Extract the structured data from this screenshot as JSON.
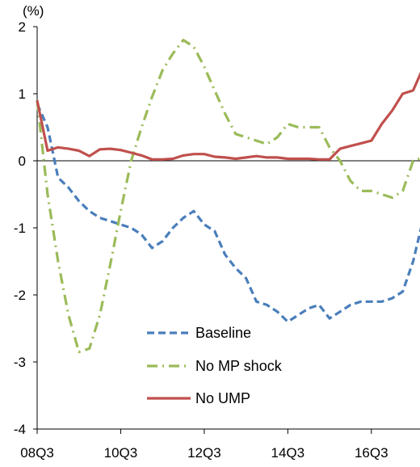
{
  "chart_data": {
    "type": "line",
    "ylabel": "(%)",
    "ylim": [
      -4,
      2
    ],
    "yticks": [
      -4,
      -3,
      -2,
      -1,
      0,
      1,
      2
    ],
    "ytick_labels": [
      "-4",
      "-3",
      "-2",
      "-1",
      "0",
      "1",
      "2"
    ],
    "xlim": [
      0,
      38
    ],
    "xticks": [
      0,
      8,
      16,
      24,
      32
    ],
    "xtick_labels": [
      "08Q3",
      "10Q3",
      "12Q3",
      "14Q3",
      "16Q3"
    ],
    "grid": false,
    "legend_position": "bottom-center",
    "series": [
      {
        "name": "Baseline",
        "style": "dashed",
        "color": "#4a7ebb",
        "x": [
          0,
          1,
          2,
          3,
          4,
          5,
          6,
          7,
          8,
          9,
          10,
          11,
          12,
          13,
          14,
          15,
          16,
          17,
          18,
          19,
          20,
          21,
          22,
          23,
          24,
          25,
          26,
          27,
          28,
          29,
          30,
          31,
          32,
          33,
          34,
          35,
          36,
          37
        ],
        "values": [
          0.85,
          0.5,
          -0.25,
          -0.4,
          -0.6,
          -0.75,
          -0.85,
          -0.9,
          -0.95,
          -1.0,
          -1.1,
          -1.3,
          -1.2,
          -1.0,
          -0.85,
          -0.75,
          -0.95,
          -1.05,
          -1.4,
          -1.6,
          -1.75,
          -2.1,
          -2.15,
          -2.25,
          -2.4,
          -2.3,
          -2.2,
          -2.15,
          -2.35,
          -2.25,
          -2.15,
          -2.1,
          -2.1,
          -2.1,
          -2.05,
          -1.95,
          -1.5,
          -0.85
        ]
      },
      {
        "name": "No MP shock",
        "style": "dash-dot",
        "color": "#9bbb59",
        "x": [
          0,
          1,
          2,
          3,
          4,
          5,
          6,
          7,
          8,
          9,
          10,
          11,
          12,
          13,
          14,
          15,
          16,
          17,
          18,
          19,
          20,
          21,
          22,
          23,
          24,
          25,
          26,
          27,
          28,
          29,
          30,
          31,
          32,
          33,
          34,
          35,
          36,
          37
        ],
        "values": [
          0.9,
          -0.5,
          -1.5,
          -2.3,
          -2.85,
          -2.8,
          -2.3,
          -1.55,
          -0.75,
          0.0,
          0.5,
          0.95,
          1.35,
          1.6,
          1.8,
          1.7,
          1.4,
          1.05,
          0.7,
          0.4,
          0.35,
          0.3,
          0.25,
          0.35,
          0.55,
          0.5,
          0.5,
          0.5,
          0.2,
          0.0,
          -0.3,
          -0.45,
          -0.45,
          -0.5,
          -0.55,
          -0.45,
          0.0,
          0.05
        ]
      },
      {
        "name": "No UMP",
        "style": "solid",
        "color": "#c0504d",
        "x": [
          0,
          1,
          2,
          3,
          4,
          5,
          6,
          7,
          8,
          9,
          10,
          11,
          12,
          13,
          14,
          15,
          16,
          17,
          18,
          19,
          20,
          21,
          22,
          23,
          24,
          25,
          26,
          27,
          28,
          29,
          30,
          31,
          32,
          33,
          34,
          35,
          36,
          37
        ],
        "values": [
          0.9,
          0.15,
          0.2,
          0.18,
          0.15,
          0.07,
          0.17,
          0.18,
          0.16,
          0.12,
          0.08,
          0.02,
          0.02,
          0.03,
          0.08,
          0.1,
          0.1,
          0.06,
          0.05,
          0.03,
          0.05,
          0.07,
          0.05,
          0.05,
          0.03,
          0.03,
          0.03,
          0.02,
          0.02,
          0.18,
          0.22,
          0.26,
          0.3,
          0.55,
          0.75,
          1.0,
          1.05,
          1.4
        ]
      }
    ]
  }
}
